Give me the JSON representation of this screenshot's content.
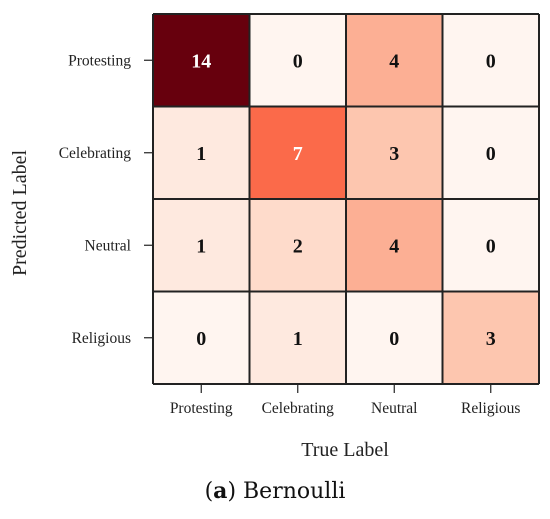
{
  "chart_data": {
    "type": "heatmap",
    "xlabel": "True Label",
    "ylabel": "Predicted Label",
    "x_categories": [
      "Protesting",
      "Celebrating",
      "Neutral",
      "Religious"
    ],
    "y_categories": [
      "Protesting",
      "Celebrating",
      "Neutral",
      "Religious"
    ],
    "values": [
      [
        14,
        0,
        4,
        0
      ],
      [
        1,
        7,
        3,
        0
      ],
      [
        1,
        2,
        4,
        0
      ],
      [
        0,
        1,
        0,
        3
      ]
    ],
    "vmin": 0,
    "vmax": 14,
    "colormap": "Reds",
    "colors": {
      "low": "#fff5f0",
      "high": "#67000d",
      "text_dark": "#111111",
      "text_light": "#ffffff",
      "grid": "#222222"
    }
  },
  "caption": {
    "label": "a",
    "text": "Bernoulli"
  }
}
